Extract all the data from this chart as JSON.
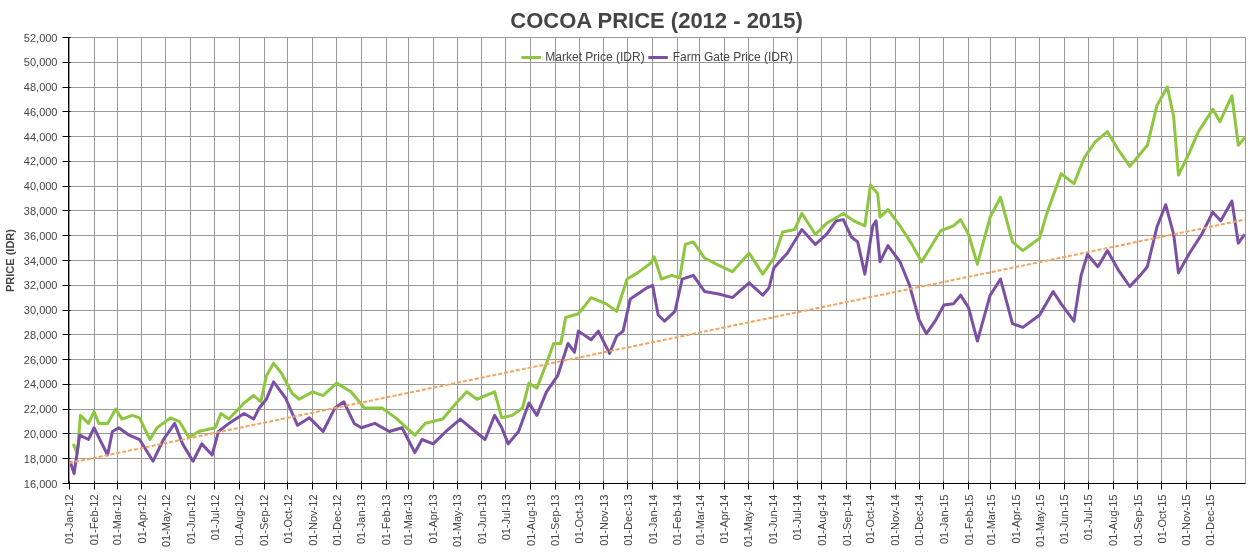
{
  "chart_data": {
    "type": "line",
    "title": "COCOA PRICE (2012 - 2015)",
    "ylabel": "PRICE (IDR)",
    "legend": "top",
    "grid": true,
    "marker": "none",
    "line_style": "solid",
    "xlim": [
      "2011-12-31",
      "2016-01-14"
    ],
    "ylim": [
      16000,
      52000
    ],
    "yticks": [
      {
        "value": 16000,
        "label": "16,000"
      },
      {
        "value": 18000,
        "label": "18,000"
      },
      {
        "value": 20000,
        "label": "20,000"
      },
      {
        "value": 22000,
        "label": "22,000"
      },
      {
        "value": 24000,
        "label": "24,000"
      },
      {
        "value": 26000,
        "label": "26,000"
      },
      {
        "value": 28000,
        "label": "28,000"
      },
      {
        "value": 30000,
        "label": "30,000"
      },
      {
        "value": 32000,
        "label": "32,000"
      },
      {
        "value": 34000,
        "label": "34,000"
      },
      {
        "value": 36000,
        "label": "36,000"
      },
      {
        "value": 38000,
        "label": "38,000"
      },
      {
        "value": 40000,
        "label": "40,000"
      },
      {
        "value": 42000,
        "label": "42,000"
      },
      {
        "value": 44000,
        "label": "44,000"
      },
      {
        "value": 46000,
        "label": "46,000"
      },
      {
        "value": 48000,
        "label": "48,000"
      },
      {
        "value": 50000,
        "label": "50,000"
      },
      {
        "value": 52000,
        "label": "52,000"
      }
    ],
    "xticks": [
      {
        "value": "2012-01-01",
        "label": "01-Jan-12"
      },
      {
        "value": "2012-02-01",
        "label": "01-Feb-12"
      },
      {
        "value": "2012-03-01",
        "label": "01-Mar-12"
      },
      {
        "value": "2012-04-01",
        "label": "01-Apr-12"
      },
      {
        "value": "2012-05-01",
        "label": "01-May-12"
      },
      {
        "value": "2012-06-01",
        "label": "01-Jun-12"
      },
      {
        "value": "2012-07-01",
        "label": "01-Jul-12"
      },
      {
        "value": "2012-08-01",
        "label": "01-Aug-12"
      },
      {
        "value": "2012-09-01",
        "label": "01-Sep-12"
      },
      {
        "value": "2012-10-01",
        "label": "01-Oct-12"
      },
      {
        "value": "2012-11-01",
        "label": "01-Nov-12"
      },
      {
        "value": "2012-12-01",
        "label": "01-Dec-12"
      },
      {
        "value": "2013-01-01",
        "label": "01-Jan-13"
      },
      {
        "value": "2013-02-01",
        "label": "01-Feb-13"
      },
      {
        "value": "2013-03-01",
        "label": "01-Mar-13"
      },
      {
        "value": "2013-04-01",
        "label": "01-Apr-13"
      },
      {
        "value": "2013-05-01",
        "label": "01-May-13"
      },
      {
        "value": "2013-06-01",
        "label": "01-Jun-13"
      },
      {
        "value": "2013-07-01",
        "label": "01-Jul-13"
      },
      {
        "value": "2013-08-01",
        "label": "01-Aug-13"
      },
      {
        "value": "2013-09-01",
        "label": "01-Sep-13"
      },
      {
        "value": "2013-10-01",
        "label": "01-Oct-13"
      },
      {
        "value": "2013-11-01",
        "label": "01-Nov-13"
      },
      {
        "value": "2013-12-01",
        "label": "01-Dec-13"
      },
      {
        "value": "2014-01-01",
        "label": "01-Jan-14"
      },
      {
        "value": "2014-02-01",
        "label": "01-Feb-14"
      },
      {
        "value": "2014-03-01",
        "label": "01-Mar-14"
      },
      {
        "value": "2014-04-01",
        "label": "01-Apr-14"
      },
      {
        "value": "2014-05-01",
        "label": "01-May-14"
      },
      {
        "value": "2014-06-01",
        "label": "01-Jun-14"
      },
      {
        "value": "2014-07-01",
        "label": "01-Jul-14"
      },
      {
        "value": "2014-08-01",
        "label": "01-Aug-14"
      },
      {
        "value": "2014-09-01",
        "label": "01-Sep-14"
      },
      {
        "value": "2014-10-01",
        "label": "01-Oct-14"
      },
      {
        "value": "2014-11-01",
        "label": "01-Nov-14"
      },
      {
        "value": "2014-12-01",
        "label": "01-Dec-14"
      },
      {
        "value": "2015-01-01",
        "label": "01-Jan-15"
      },
      {
        "value": "2015-02-01",
        "label": "01-Feb-15"
      },
      {
        "value": "2015-03-01",
        "label": "01-Mar-15"
      },
      {
        "value": "2015-04-01",
        "label": "01-Apr-15"
      },
      {
        "value": "2015-05-01",
        "label": "01-May-15"
      },
      {
        "value": "2015-06-01",
        "label": "01-Jun-15"
      },
      {
        "value": "2015-07-01",
        "label": "01-Jul-15"
      },
      {
        "value": "2015-08-01",
        "label": "01-Aug-15"
      },
      {
        "value": "2015-09-01",
        "label": "01-Sep-15"
      },
      {
        "value": "2015-10-01",
        "label": "01-Oct-15"
      },
      {
        "value": "2015-11-01",
        "label": "01-Nov-15"
      },
      {
        "value": "2015-12-01",
        "label": "01-Dec-15"
      }
    ],
    "series": [
      {
        "name": "Market Price (IDR)",
        "color": "#8dc63f",
        "x": [
          "2012-01-06",
          "2012-01-11",
          "2012-01-15",
          "2012-01-25",
          "2012-02-01",
          "2012-02-07",
          "2012-02-18",
          "2012-02-28",
          "2012-03-07",
          "2012-03-20",
          "2012-03-29",
          "2012-04-11",
          "2012-04-20",
          "2012-05-07",
          "2012-05-18",
          "2012-05-30",
          "2012-06-11",
          "2012-07-02",
          "2012-07-09",
          "2012-07-19",
          "2012-08-07",
          "2012-08-19",
          "2012-08-28",
          "2012-09-04",
          "2012-09-13",
          "2012-09-23",
          "2012-10-06",
          "2012-10-15",
          "2012-11-01",
          "2012-11-14",
          "2012-12-01",
          "2012-12-19",
          "2013-01-05",
          "2013-01-27",
          "2013-02-13",
          "2013-03-09",
          "2013-03-22",
          "2013-04-13",
          "2013-04-30",
          "2013-05-13",
          "2013-05-26",
          "2013-06-17",
          "2013-06-26",
          "2013-07-09",
          "2013-07-22",
          "2013-07-30",
          "2013-08-09",
          "2013-08-21",
          "2013-08-30",
          "2013-09-08",
          "2013-09-14",
          "2013-09-30",
          "2013-10-16",
          "2013-11-04",
          "2013-11-17",
          "2013-11-30",
          "2013-12-13",
          "2013-12-30",
          "2014-01-03",
          "2014-01-12",
          "2014-01-25",
          "2014-02-04",
          "2014-02-11",
          "2014-02-21",
          "2014-03-07",
          "2014-03-25",
          "2014-04-11",
          "2014-05-02",
          "2014-05-19",
          "2014-06-02",
          "2014-06-13",
          "2014-06-28",
          "2014-07-07",
          "2014-07-24",
          "2014-08-07",
          "2014-08-28",
          "2014-09-10",
          "2014-09-24",
          "2014-10-01",
          "2014-10-10",
          "2014-10-13",
          "2014-10-23",
          "2014-11-07",
          "2014-11-22",
          "2014-12-04",
          "2014-12-10",
          "2014-12-28",
          "2015-01-13",
          "2015-01-22",
          "2015-02-01",
          "2015-02-12",
          "2015-02-28",
          "2015-03-13",
          "2015-03-28",
          "2015-04-10",
          "2015-05-01",
          "2015-05-10",
          "2015-05-28",
          "2015-06-13",
          "2015-06-26",
          "2015-07-10",
          "2015-07-25",
          "2015-08-08",
          "2015-08-22",
          "2015-09-04",
          "2015-09-13",
          "2015-09-25",
          "2015-10-08",
          "2015-10-16",
          "2015-10-22",
          "2015-11-04",
          "2015-11-16",
          "2015-12-04",
          "2015-12-13",
          "2015-12-28",
          "2016-01-05",
          "2016-01-13"
        ],
        "values": [
          19200,
          18400,
          21500,
          20850,
          21800,
          20850,
          20850,
          22000,
          21200,
          21500,
          21300,
          19550,
          20500,
          21300,
          21000,
          19700,
          20200,
          20500,
          21650,
          21200,
          22500,
          23100,
          22600,
          24700,
          25700,
          24900,
          23300,
          22800,
          23400,
          23100,
          24100,
          23400,
          22100,
          22100,
          21300,
          19900,
          20850,
          21200,
          22500,
          23400,
          22800,
          23400,
          21300,
          21500,
          22100,
          24100,
          23700,
          25700,
          27300,
          27300,
          29400,
          29700,
          31000,
          30500,
          29900,
          32500,
          33000,
          33800,
          34300,
          32500,
          32800,
          32600,
          35300,
          35500,
          34200,
          33600,
          33100,
          34600,
          32900,
          34200,
          36300,
          36500,
          37800,
          36100,
          37000,
          37800,
          37200,
          36800,
          40100,
          39400,
          37500,
          38100,
          36800,
          35300,
          33900,
          34500,
          36400,
          36800,
          37300,
          36100,
          33700,
          37500,
          39100,
          35500,
          34800,
          35800,
          37800,
          41000,
          40200,
          42300,
          43600,
          44400,
          42900,
          41600,
          42600,
          43300,
          46500,
          48000,
          45600,
          40900,
          42600,
          44400,
          46200,
          45200,
          47300,
          43300,
          43900
        ]
      },
      {
        "name": "Farm Gate Price (IDR)",
        "color": "#7b4fa3",
        "x": [
          "2012-01-02",
          "2012-01-07",
          "2012-01-14",
          "2012-01-25",
          "2012-02-01",
          "2012-02-11",
          "2012-02-18",
          "2012-02-24",
          "2012-03-03",
          "2012-03-16",
          "2012-03-29",
          "2012-04-15",
          "2012-04-28",
          "2012-05-12",
          "2012-05-22",
          "2012-06-04",
          "2012-06-15",
          "2012-06-28",
          "2012-07-06",
          "2012-07-19",
          "2012-08-07",
          "2012-08-19",
          "2012-08-26",
          "2012-09-04",
          "2012-09-13",
          "2012-09-28",
          "2012-10-13",
          "2012-10-28",
          "2012-11-14",
          "2012-11-29",
          "2012-12-10",
          "2012-12-23",
          "2013-01-01",
          "2013-01-18",
          "2013-02-05",
          "2013-02-21",
          "2013-03-09",
          "2013-03-18",
          "2013-04-01",
          "2013-04-17",
          "2013-05-05",
          "2013-05-18",
          "2013-06-05",
          "2013-06-17",
          "2013-06-26",
          "2013-07-04",
          "2013-07-17",
          "2013-07-30",
          "2013-08-09",
          "2013-08-21",
          "2013-09-04",
          "2013-09-17",
          "2013-09-25",
          "2013-09-30",
          "2013-10-16",
          "2013-10-25",
          "2013-11-08",
          "2013-11-17",
          "2013-11-25",
          "2013-12-04",
          "2013-12-25",
          "2014-01-01",
          "2014-01-08",
          "2014-01-16",
          "2014-01-29",
          "2014-02-07",
          "2014-02-21",
          "2014-03-07",
          "2014-03-25",
          "2014-04-11",
          "2014-05-02",
          "2014-05-19",
          "2014-05-27",
          "2014-06-02",
          "2014-06-19",
          "2014-07-07",
          "2014-07-24",
          "2014-08-07",
          "2014-08-19",
          "2014-08-28",
          "2014-09-07",
          "2014-09-15",
          "2014-09-24",
          "2014-10-04",
          "2014-10-08",
          "2014-10-13",
          "2014-10-23",
          "2014-11-07",
          "2014-11-19",
          "2014-12-01",
          "2014-12-10",
          "2014-12-21",
          "2015-01-01",
          "2015-01-13",
          "2015-01-22",
          "2015-02-01",
          "2015-02-12",
          "2015-02-28",
          "2015-03-13",
          "2015-03-28",
          "2015-04-10",
          "2015-05-01",
          "2015-05-18",
          "2015-05-28",
          "2015-06-13",
          "2015-06-22",
          "2015-06-30",
          "2015-07-13",
          "2015-07-25",
          "2015-08-08",
          "2015-08-22",
          "2015-09-04",
          "2015-09-13",
          "2015-09-25",
          "2015-10-06",
          "2015-10-16",
          "2015-10-22",
          "2015-11-04",
          "2015-11-20",
          "2015-12-04",
          "2015-12-14",
          "2015-12-28",
          "2016-01-05",
          "2016-01-13"
        ],
        "values": [
          17800,
          16800,
          19900,
          19550,
          20500,
          19200,
          18300,
          20200,
          20500,
          19900,
          19550,
          17800,
          19550,
          20850,
          19200,
          17800,
          19200,
          18300,
          20200,
          20850,
          21650,
          21200,
          22100,
          22800,
          24200,
          22900,
          20700,
          21300,
          20200,
          22100,
          22600,
          20850,
          20500,
          20850,
          20200,
          20500,
          18500,
          19550,
          19200,
          20200,
          21200,
          20500,
          19550,
          21500,
          20500,
          19200,
          20200,
          22500,
          21500,
          23400,
          24700,
          27300,
          26600,
          28300,
          27600,
          28300,
          26500,
          27900,
          28300,
          30900,
          31800,
          32000,
          29600,
          29100,
          29900,
          32500,
          32800,
          31500,
          31300,
          31000,
          32200,
          31200,
          31800,
          33400,
          34600,
          36500,
          35300,
          36100,
          37200,
          37300,
          35900,
          35500,
          32900,
          36800,
          37200,
          33900,
          35200,
          33900,
          32000,
          29200,
          28100,
          29100,
          30400,
          30500,
          31200,
          30200,
          27500,
          31200,
          32500,
          28900,
          28600,
          29600,
          31500,
          30500,
          29100,
          32800,
          34500,
          33500,
          34800,
          33200,
          31900,
          32800,
          33500,
          36700,
          38500,
          36100,
          33000,
          34500,
          36100,
          37900,
          37200,
          38800,
          35400,
          36100
        ]
      },
      {
        "type": "line",
        "color": "#f4a460",
        "line_style": "dashed",
        "x": [
          "2012-01-01",
          "2016-01-13"
        ],
        "values": [
          17650,
          37300
        ]
      }
    ]
  }
}
